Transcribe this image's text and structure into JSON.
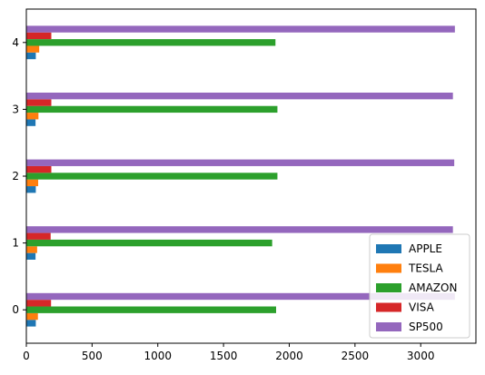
{
  "chart_data": {
    "type": "bar",
    "orientation": "horizontal",
    "categories": [
      "0",
      "1",
      "2",
      "3",
      "4"
    ],
    "series": [
      {
        "name": "APPLE",
        "color": "#1f77b4",
        "values": [
          72,
          70,
          72,
          70,
          72
        ]
      },
      {
        "name": "TESLA",
        "color": "#ff7f0e",
        "values": [
          88,
          82,
          90,
          92,
          98
        ]
      },
      {
        "name": "AMAZON",
        "color": "#2ca02c",
        "values": [
          1900,
          1870,
          1910,
          1910,
          1895
        ]
      },
      {
        "name": "VISA",
        "color": "#d62728",
        "values": [
          188,
          185,
          190,
          190,
          190
        ]
      },
      {
        "name": "SP500",
        "color": "#9467bd",
        "values": [
          3260,
          3245,
          3255,
          3245,
          3260
        ]
      }
    ],
    "title": "",
    "xlabel": "",
    "ylabel": "",
    "xlim": [
      0,
      3420
    ],
    "xticks": [
      0,
      500,
      1000,
      1500,
      2000,
      2500,
      3000
    ],
    "grid": false,
    "legend_position": "lower-right"
  }
}
